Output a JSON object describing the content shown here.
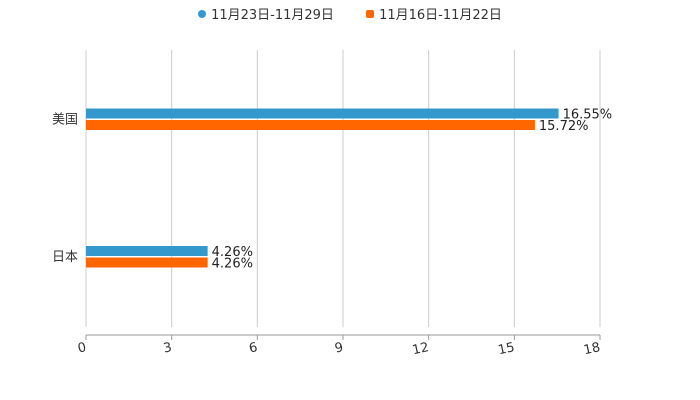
{
  "chart_data": {
    "type": "bar",
    "orientation": "horizontal",
    "title": "",
    "categories": [
      "美国",
      "日本"
    ],
    "series": [
      {
        "name": "11月23日-11月29日",
        "color": "#3399cc",
        "values": [
          16.55,
          4.26
        ],
        "labels": [
          "16.55%",
          "4.26%"
        ]
      },
      {
        "name": "11月16日-11月22日",
        "color": "#ff6600",
        "values": [
          15.72,
          4.26
        ],
        "labels": [
          "15.72%",
          "4.26%"
        ]
      }
    ],
    "xlim": [
      0,
      18
    ],
    "xticks": [
      "0",
      "3",
      "6",
      "9",
      "12",
      "15",
      "18"
    ],
    "grid": true,
    "legend_position": "top-center",
    "xlabel": "",
    "ylabel": ""
  }
}
